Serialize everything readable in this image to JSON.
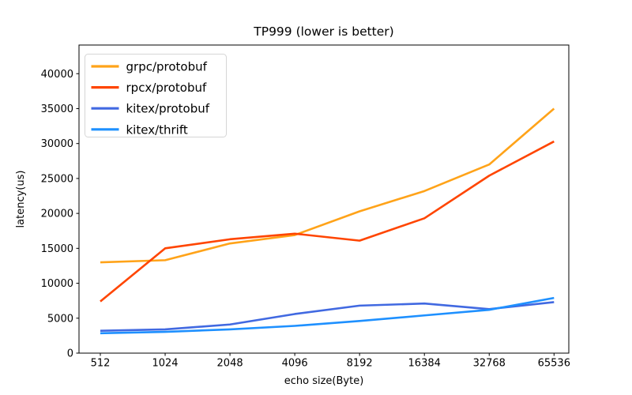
{
  "figure": {
    "title": "TP999 (lower is better)",
    "xlabel": "echo size(Byte)",
    "ylabel": "latency(us)"
  },
  "chart_data": {
    "type": "line",
    "title": "TP999 (lower is better)",
    "xlabel": "echo size(Byte)",
    "ylabel": "latency(us)",
    "categories": [
      "512",
      "1024",
      "2048",
      "4096",
      "8192",
      "16384",
      "32768",
      "65536"
    ],
    "y_ticks": [
      "0",
      "5000",
      "10000",
      "15000",
      "20000",
      "25000",
      "30000",
      "35000",
      "40000"
    ],
    "ylim": [
      0,
      44100
    ],
    "grid": false,
    "legend_position": "upper-left",
    "series": [
      {
        "name": "grpc/protobuf",
        "color": "#FFA319",
        "values": [
          13000,
          13300,
          15700,
          16900,
          20300,
          23200,
          27000,
          35000
        ]
      },
      {
        "name": "rpcx/protobuf",
        "color": "#FF4500",
        "values": [
          7400,
          15000,
          16300,
          17100,
          16100,
          19300,
          25400,
          30300
        ]
      },
      {
        "name": "kitex/protobuf",
        "color": "#4169E1",
        "values": [
          3200,
          3400,
          4100,
          5600,
          6800,
          7100,
          6300,
          7300
        ]
      },
      {
        "name": "kitex/thrift",
        "color": "#1E90FF",
        "values": [
          2850,
          3050,
          3400,
          3900,
          4600,
          5400,
          6200,
          7900
        ]
      }
    ]
  },
  "colors": {
    "axis": "#000000",
    "background": "#ffffff",
    "legend_border": "#d5d5d5",
    "legend_fill": "#ffffff"
  }
}
